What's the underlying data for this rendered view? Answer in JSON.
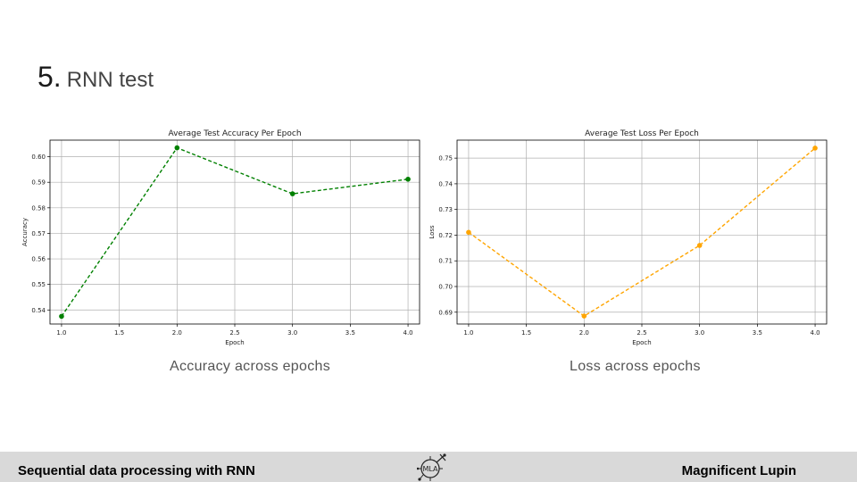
{
  "slide": {
    "title_number": "5.",
    "title_text": "RNN test",
    "caption_left": "Accuracy across epochs",
    "caption_right": "Loss across epochs"
  },
  "footer": {
    "left_text": "Sequential data processing with RNN",
    "right_text": "Magnificent Lupin",
    "logo_letters": "MLA",
    "logo_icon": "circuit-logo-icon"
  },
  "chart_data": [
    {
      "type": "line",
      "title": "Average Test Accuracy Per Epoch",
      "xlabel": "Epoch",
      "ylabel": "Accuracy",
      "x": [
        1.0,
        2.0,
        3.0,
        4.0
      ],
      "series": [
        {
          "values": [
            0.5375,
            0.6035,
            0.5855,
            0.5912
          ],
          "color": "#008000",
          "style": "dashed",
          "marker": "circle"
        }
      ],
      "xlim": [
        0.9,
        4.1
      ],
      "ylim": [
        0.5345,
        0.6065
      ],
      "xticks": [
        "1.0",
        "1.5",
        "2.0",
        "2.5",
        "3.0",
        "3.5",
        "4.0"
      ],
      "yticks": [
        "0.54",
        "0.55",
        "0.56",
        "0.57",
        "0.58",
        "0.59",
        "0.60"
      ],
      "grid": true
    },
    {
      "type": "line",
      "title": "Average Test Loss Per Epoch",
      "xlabel": "Epoch",
      "ylabel": "Loss",
      "x": [
        1.0,
        2.0,
        3.0,
        4.0
      ],
      "series": [
        {
          "values": [
            0.7211,
            0.6885,
            0.716,
            0.7539
          ],
          "color": "#ffa500",
          "style": "dashed",
          "marker": "circle"
        }
      ],
      "xlim": [
        0.9,
        4.1
      ],
      "ylim": [
        0.6854,
        0.757
      ],
      "xticks": [
        "1.0",
        "1.5",
        "2.0",
        "2.5",
        "3.0",
        "3.5",
        "4.0"
      ],
      "yticks": [
        "0.69",
        "0.70",
        "0.71",
        "0.72",
        "0.73",
        "0.74",
        "0.75"
      ],
      "grid": true
    }
  ]
}
